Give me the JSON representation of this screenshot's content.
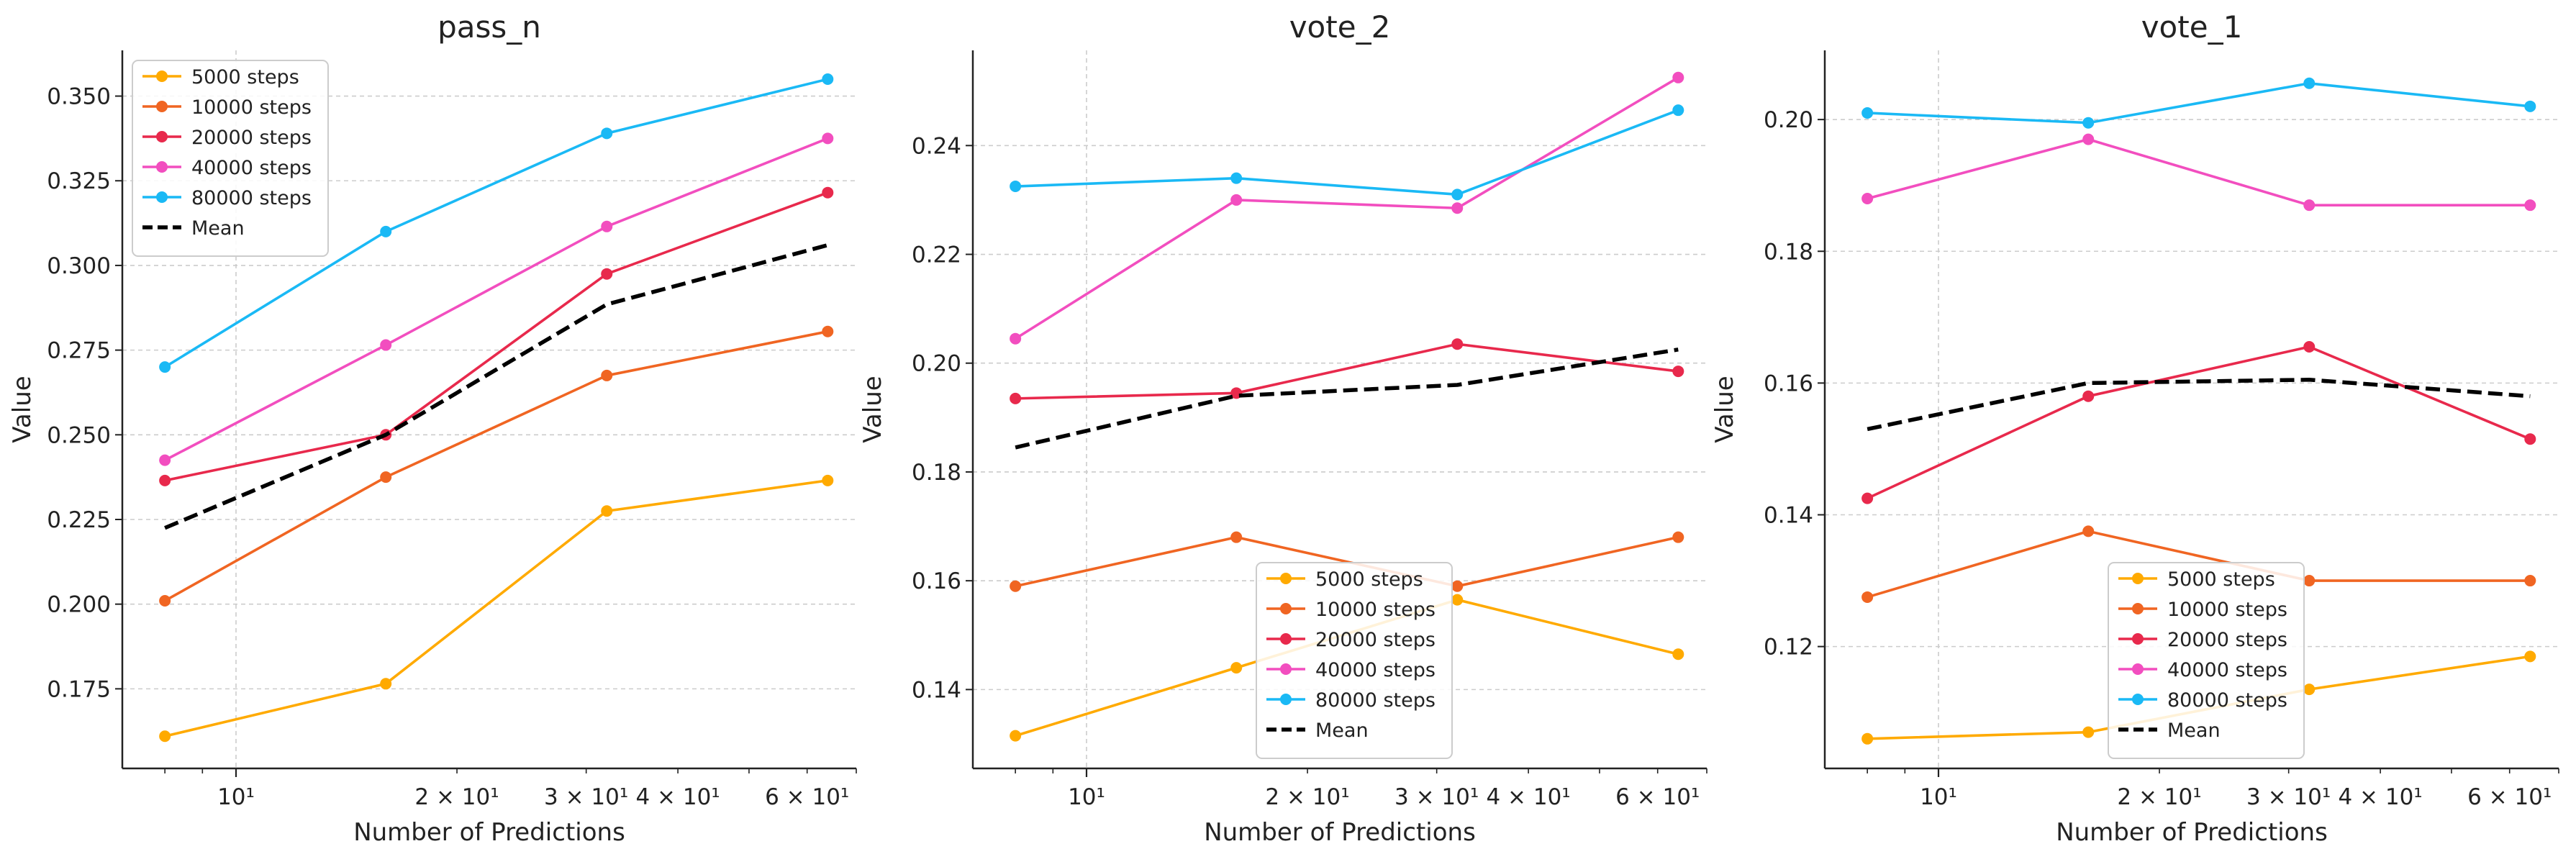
{
  "figure": {
    "background": "#ffffff",
    "grid_color": "#cccccc",
    "axis_color": "#222222"
  },
  "chart_data": [
    {
      "type": "line",
      "title": "pass_n",
      "xlabel": "Number of Predictions",
      "ylabel": "Value",
      "xscale": "log",
      "xlim": [
        7,
        70
      ],
      "x": [
        8,
        16,
        32,
        64
      ],
      "xticks_major": [
        {
          "value": 10,
          "label": "10¹"
        }
      ],
      "xticks_minor": [
        {
          "value": 20,
          "label": "2 × 10¹"
        },
        {
          "value": 30,
          "label": "3 × 10¹"
        },
        {
          "value": 40,
          "label": "4 × 10¹"
        },
        {
          "value": 60,
          "label": "6 × 10¹"
        }
      ],
      "ylim": [
        0.1515,
        0.3635
      ],
      "yticks": [
        {
          "value": 0.175,
          "label": "0.175"
        },
        {
          "value": 0.2,
          "label": "0.200"
        },
        {
          "value": 0.225,
          "label": "0.225"
        },
        {
          "value": 0.25,
          "label": "0.250"
        },
        {
          "value": 0.275,
          "label": "0.275"
        },
        {
          "value": 0.3,
          "label": "0.300"
        },
        {
          "value": 0.325,
          "label": "0.325"
        },
        {
          "value": 0.35,
          "label": "0.350"
        }
      ],
      "grid": true,
      "legend_position": "upper left",
      "series": [
        {
          "name": "5000 steps",
          "color": "#ffaa00",
          "style": "solid",
          "marker": true,
          "values": [
            0.161,
            0.1765,
            0.2275,
            0.2365
          ]
        },
        {
          "name": "10000 steps",
          "color": "#f06522",
          "style": "solid",
          "marker": true,
          "values": [
            0.201,
            0.2375,
            0.2675,
            0.2805
          ]
        },
        {
          "name": "20000 steps",
          "color": "#e8294c",
          "style": "solid",
          "marker": true,
          "values": [
            0.2365,
            0.25,
            0.2975,
            0.3215
          ]
        },
        {
          "name": "40000 steps",
          "color": "#f24ebf",
          "style": "solid",
          "marker": true,
          "values": [
            0.2425,
            0.2765,
            0.3115,
            0.3375
          ]
        },
        {
          "name": "80000 steps",
          "color": "#1ab9f5",
          "style": "solid",
          "marker": true,
          "values": [
            0.27,
            0.31,
            0.339,
            0.355
          ]
        },
        {
          "name": "Mean",
          "color": "#000000",
          "style": "dashed",
          "marker": false,
          "values": [
            0.2225,
            0.25,
            0.2885,
            0.306
          ]
        }
      ]
    },
    {
      "type": "line",
      "title": "vote_2",
      "xlabel": "Number of Predictions",
      "ylabel": "Value",
      "xscale": "log",
      "xlim": [
        7,
        70
      ],
      "x": [
        8,
        16,
        32,
        64
      ],
      "xticks_major": [
        {
          "value": 10,
          "label": "10¹"
        }
      ],
      "xticks_minor": [
        {
          "value": 20,
          "label": "2 × 10¹"
        },
        {
          "value": 30,
          "label": "3 × 10¹"
        },
        {
          "value": 40,
          "label": "4 × 10¹"
        },
        {
          "value": 60,
          "label": "6 × 10¹"
        }
      ],
      "ylim": [
        0.1255,
        0.2575
      ],
      "yticks": [
        {
          "value": 0.14,
          "label": "0.14"
        },
        {
          "value": 0.16,
          "label": "0.16"
        },
        {
          "value": 0.18,
          "label": "0.18"
        },
        {
          "value": 0.2,
          "label": "0.20"
        },
        {
          "value": 0.22,
          "label": "0.22"
        },
        {
          "value": 0.24,
          "label": "0.24"
        }
      ],
      "grid": true,
      "legend_position": "lower center",
      "series": [
        {
          "name": "5000 steps",
          "color": "#ffaa00",
          "style": "solid",
          "marker": true,
          "values": [
            0.1315,
            0.144,
            0.1565,
            0.1465
          ]
        },
        {
          "name": "10000 steps",
          "color": "#f06522",
          "style": "solid",
          "marker": true,
          "values": [
            0.159,
            0.168,
            0.159,
            0.168
          ]
        },
        {
          "name": "20000 steps",
          "color": "#e8294c",
          "style": "solid",
          "marker": true,
          "values": [
            0.1935,
            0.1945,
            0.2035,
            0.1985
          ]
        },
        {
          "name": "40000 steps",
          "color": "#f24ebf",
          "style": "solid",
          "marker": true,
          "values": [
            0.2045,
            0.23,
            0.2285,
            0.2525
          ]
        },
        {
          "name": "80000 steps",
          "color": "#1ab9f5",
          "style": "solid",
          "marker": true,
          "values": [
            0.2325,
            0.234,
            0.231,
            0.2465
          ]
        },
        {
          "name": "Mean",
          "color": "#000000",
          "style": "dashed",
          "marker": false,
          "values": [
            0.1845,
            0.194,
            0.196,
            0.2025
          ]
        }
      ]
    },
    {
      "type": "line",
      "title": "vote_1",
      "xlabel": "Number of Predictions",
      "ylabel": "Value",
      "xscale": "log",
      "xlim": [
        7,
        70
      ],
      "x": [
        8,
        16,
        32,
        64
      ],
      "xticks_major": [
        {
          "value": 10,
          "label": "10¹"
        }
      ],
      "xticks_minor": [
        {
          "value": 20,
          "label": "2 × 10¹"
        },
        {
          "value": 30,
          "label": "3 × 10¹"
        },
        {
          "value": 40,
          "label": "4 × 10¹"
        },
        {
          "value": 60,
          "label": "6 × 10¹"
        }
      ],
      "ylim": [
        0.1015,
        0.2105
      ],
      "yticks": [
        {
          "value": 0.12,
          "label": "0.12"
        },
        {
          "value": 0.14,
          "label": "0.14"
        },
        {
          "value": 0.16,
          "label": "0.16"
        },
        {
          "value": 0.18,
          "label": "0.18"
        },
        {
          "value": 0.2,
          "label": "0.20"
        }
      ],
      "grid": true,
      "legend_position": "lower center",
      "series": [
        {
          "name": "5000 steps",
          "color": "#ffaa00",
          "style": "solid",
          "marker": true,
          "values": [
            0.106,
            0.107,
            0.1135,
            0.1185
          ]
        },
        {
          "name": "10000 steps",
          "color": "#f06522",
          "style": "solid",
          "marker": true,
          "values": [
            0.1275,
            0.1375,
            0.13,
            0.13
          ]
        },
        {
          "name": "20000 steps",
          "color": "#e8294c",
          "style": "solid",
          "marker": true,
          "values": [
            0.1425,
            0.158,
            0.1655,
            0.1515
          ]
        },
        {
          "name": "40000 steps",
          "color": "#f24ebf",
          "style": "solid",
          "marker": true,
          "values": [
            0.188,
            0.197,
            0.187,
            0.187
          ]
        },
        {
          "name": "80000 steps",
          "color": "#1ab9f5",
          "style": "solid",
          "marker": true,
          "values": [
            0.201,
            0.1995,
            0.2055,
            0.202
          ]
        },
        {
          "name": "Mean",
          "color": "#000000",
          "style": "dashed",
          "marker": false,
          "values": [
            0.153,
            0.16,
            0.1605,
            0.158
          ]
        }
      ]
    }
  ]
}
